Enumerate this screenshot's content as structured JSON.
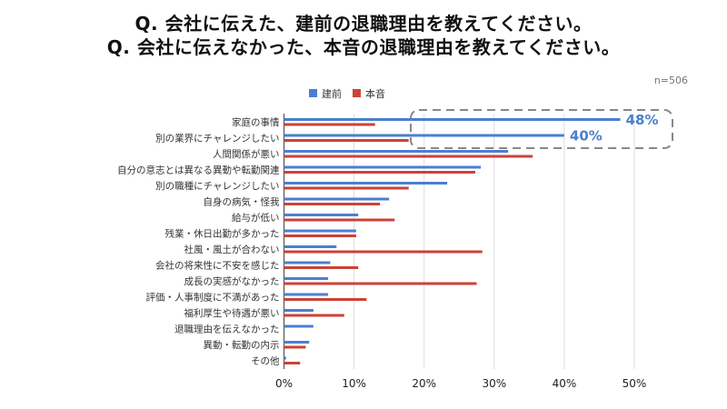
{
  "title_line1": "Q. 会社に伝えた、建前の退職理由を教えてください。",
  "title_line2": "Q. 会社に伝えなかった、本音の退職理由を教えてください。",
  "sample_size": "n=506",
  "chart_data": {
    "type": "bar",
    "orientation": "horizontal",
    "categories": [
      "家庭の事情",
      "別の業界にチャレンジしたい",
      "人間関係が悪い",
      "自分の意志とは異なる異動や転勤関連",
      "別の職種にチャレンジしたい",
      "自身の病気・怪我",
      "給与が低い",
      "残業・休日出勤が多かった",
      "社風・風土が合わない",
      "会社の将来性に不安を感じた",
      "成長の実感がなかった",
      "評価・人事制度に不満があった",
      "福利厚生や待遇が悪い",
      "退職理由を伝えなかった",
      "異動・転勤の内示",
      "その他"
    ],
    "series": [
      {
        "name": "建前",
        "color": "#4a7fd0",
        "values": [
          48,
          40,
          32,
          28.1,
          23.3,
          15,
          10.6,
          10.3,
          7.5,
          6.6,
          6.3,
          6.3,
          4.2,
          4.2,
          3.6,
          0.3
        ]
      },
      {
        "name": "本音",
        "color": "#cc4236",
        "values": [
          13,
          17.8,
          35.5,
          27.3,
          17.8,
          13.7,
          15.8,
          10.3,
          28.3,
          10.6,
          27.5,
          11.8,
          8.6,
          0,
          3.1,
          2.3
        ]
      }
    ],
    "xlim": [
      0,
      50
    ],
    "xticks": [
      "0%",
      "10%",
      "20%",
      "30%",
      "40%",
      "50%"
    ],
    "grid": true,
    "legend": "top",
    "annotations": [
      {
        "text": "48%",
        "category": "家庭の事情"
      },
      {
        "text": "40%",
        "category": "別の業界にチャレンジしたい"
      }
    ]
  }
}
